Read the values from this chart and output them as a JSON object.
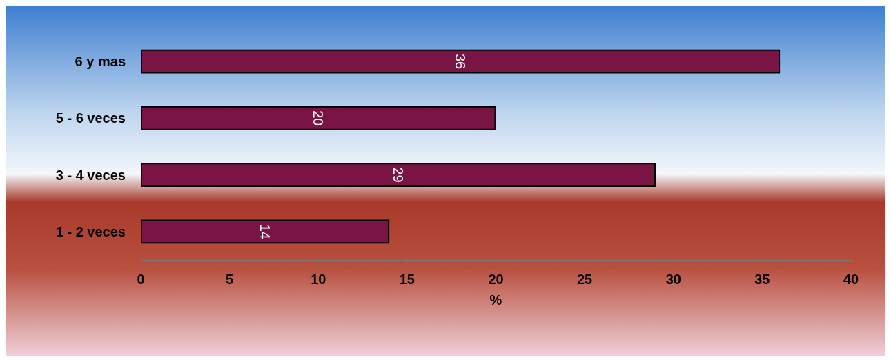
{
  "chart_data": {
    "type": "bar",
    "orientation": "horizontal",
    "categories": [
      "6 y mas",
      "5 - 6 veces",
      "3 - 4 veces",
      "1 - 2 veces"
    ],
    "values": [
      36,
      20,
      29,
      14
    ],
    "color": "#7a1444",
    "xlabel": "%",
    "xlim": [
      0,
      40
    ],
    "xticks": [
      0,
      5,
      10,
      15,
      20,
      25,
      30,
      35,
      40
    ],
    "data_labels": true
  }
}
